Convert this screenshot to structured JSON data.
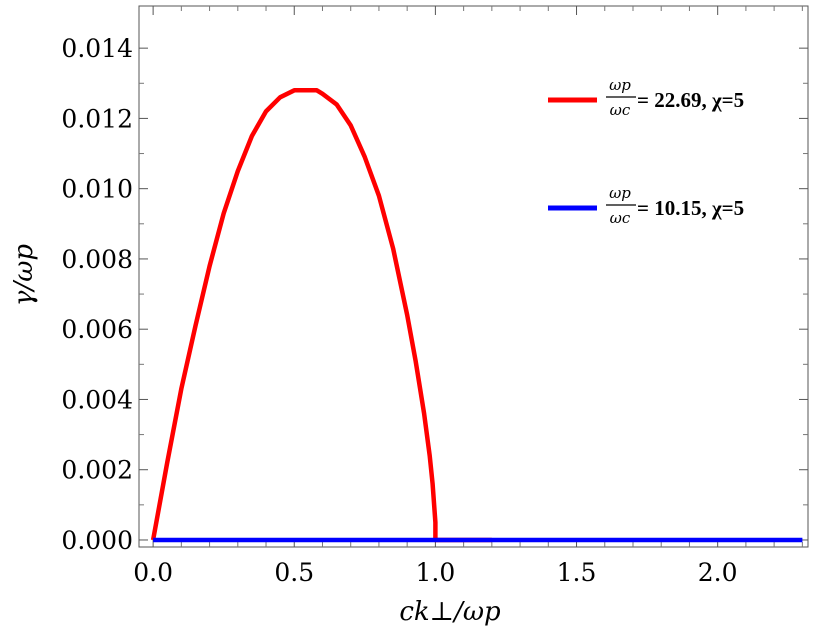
{
  "chart_data": {
    "type": "line",
    "xlabel": "ck⊥/ωp",
    "ylabel": "γ/ωp",
    "xlim": [
      -0.05,
      2.32
    ],
    "ylim": [
      -0.0002,
      0.0152
    ],
    "x_ticks": [
      "0.0",
      "0.5",
      "1.0",
      "1.5",
      "2.0"
    ],
    "y_ticks": [
      "0.000",
      "0.002",
      "0.004",
      "0.006",
      "0.008",
      "0.010",
      "0.012",
      "0.014"
    ],
    "grid": false,
    "legend_position": "top-right",
    "series": [
      {
        "name": "ωp/ωc= 22.69,  χ=5",
        "legend_frac_num": "ωp",
        "legend_frac_den": "ωc",
        "legend_text": "= 22.69,  χ=5",
        "color": "#ff0000",
        "x": [
          0.0,
          0.05,
          0.1,
          0.15,
          0.2,
          0.25,
          0.3,
          0.35,
          0.4,
          0.45,
          0.5,
          0.55,
          0.58,
          0.6,
          0.65,
          0.7,
          0.75,
          0.8,
          0.85,
          0.9,
          0.93,
          0.96,
          0.98,
          0.99,
          1.0,
          1.0,
          1.2
        ],
        "y": [
          0.0,
          0.0022,
          0.0043,
          0.0061,
          0.0078,
          0.0093,
          0.0105,
          0.0115,
          0.0122,
          0.0126,
          0.0128,
          0.0128,
          0.0128,
          0.0127,
          0.0124,
          0.0118,
          0.0109,
          0.0098,
          0.0083,
          0.0064,
          0.0051,
          0.0036,
          0.0024,
          0.0016,
          0.0005,
          0.0,
          0.0
        ]
      },
      {
        "name": "ωp/ωc= 10.15,  χ=5",
        "legend_frac_num": "ωp",
        "legend_frac_den": "ωc",
        "legend_text": "= 10.15,  χ=5",
        "color": "#0000ff",
        "x": [
          0.0,
          2.3
        ],
        "y": [
          0.0,
          0.0
        ]
      }
    ]
  }
}
